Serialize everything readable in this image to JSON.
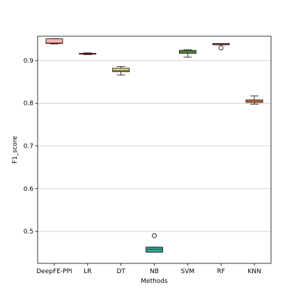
{
  "chart_data": {
    "type": "boxplot",
    "xlabel": "Methods",
    "ylabel": "F1_score",
    "ylim": [
      0.425,
      0.957
    ],
    "yticks": [
      0.5,
      0.6,
      0.7,
      0.8,
      0.9
    ],
    "ytick_labels": [
      "0.5",
      "0.6",
      "0.7",
      "0.8",
      "0.9"
    ],
    "grid": "horizontal",
    "categories": [
      "DeepFE-PPI",
      "LR",
      "DT",
      "NB",
      "SVM",
      "RF",
      "KNN"
    ],
    "boxes": [
      {
        "name": "DeepFE-PPI",
        "whislo": 0.939,
        "q1": 0.94,
        "med": 0.941,
        "q3": 0.951,
        "whishi": 0.951,
        "fliers": [],
        "color": "#f4b6b6"
      },
      {
        "name": "LR",
        "whislo": 0.914,
        "q1": 0.915,
        "med": 0.916,
        "q3": 0.917,
        "whishi": 0.918,
        "fliers": [],
        "color": "#e6926a"
      },
      {
        "name": "DT",
        "whislo": 0.866,
        "q1": 0.874,
        "med": 0.876,
        "q3": 0.882,
        "whishi": 0.886,
        "fliers": [],
        "color": "#c8e07c"
      },
      {
        "name": "NB",
        "whislo": 0.451,
        "q1": 0.451,
        "med": 0.458,
        "q3": 0.463,
        "whishi": 0.463,
        "fliers": [
          0.49
        ],
        "color": "#2aa89e"
      },
      {
        "name": "SVM",
        "whislo": 0.908,
        "q1": 0.917,
        "med": 0.92,
        "q3": 0.924,
        "whishi": 0.925,
        "fliers": [],
        "color": "#3fb84a"
      },
      {
        "name": "RF",
        "whislo": 0.937,
        "q1": 0.937,
        "med": 0.938,
        "q3": 0.94,
        "whishi": 0.94,
        "fliers": [
          0.93
        ],
        "color": "#e8b4d8"
      },
      {
        "name": "KNN",
        "whislo": 0.798,
        "q1": 0.802,
        "med": 0.805,
        "q3": 0.808,
        "whishi": 0.817,
        "fliers": [],
        "color": "#f2a65a"
      }
    ]
  }
}
